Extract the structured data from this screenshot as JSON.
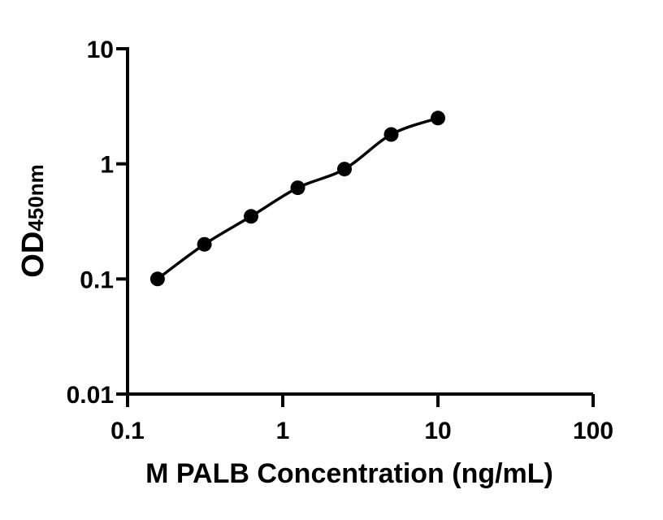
{
  "colors": {
    "ink": "#000000",
    "background": "#ffffff"
  },
  "chart_data": {
    "type": "scatter",
    "subtype": "standard-curve-with-fit",
    "x": [
      0.156,
      0.313,
      0.625,
      1.25,
      2.5,
      5,
      10
    ],
    "y": [
      0.1,
      0.2,
      0.35,
      0.62,
      0.9,
      1.8,
      2.5
    ],
    "title": "",
    "xlabel": "M PALB Concentration (ng/mL)",
    "ylabel": {
      "main": "OD",
      "sub": "450nm"
    },
    "xscale": "log",
    "yscale": "log",
    "xlim": [
      0.1,
      100
    ],
    "ylim": [
      0.01,
      10
    ],
    "x_ticks": {
      "values": [
        0.1,
        1,
        10,
        100
      ],
      "labels": [
        "0.1",
        "1",
        "10",
        "100"
      ]
    },
    "y_ticks": {
      "values": [
        0.01,
        0.1,
        1,
        10
      ],
      "labels": [
        "0.01",
        "0.1",
        "1",
        "10"
      ]
    },
    "grid": false,
    "legend": false,
    "marker": "filled-circle",
    "marker_color": "#000000",
    "line_color": "#000000"
  }
}
